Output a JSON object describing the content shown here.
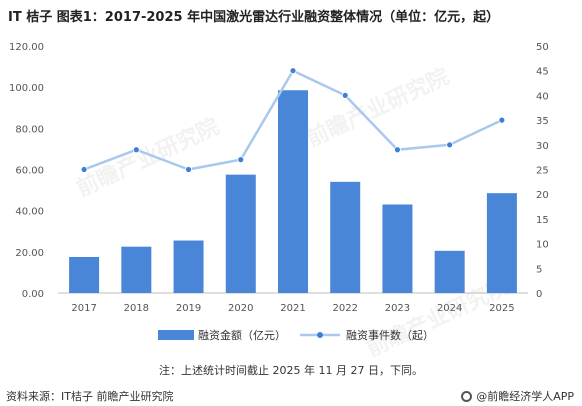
{
  "header": {
    "title": "IT 桔子  图表1：2017-2025 年中国激光雷达行业融资整体情况（单位：亿元，起）"
  },
  "chart_data": {
    "type": "bar",
    "categories": [
      "2017",
      "2018",
      "2019",
      "2020",
      "2021",
      "2022",
      "2023",
      "2024",
      "2025"
    ],
    "series": [
      {
        "name": "融资金额（亿元）",
        "type": "bar",
        "axis": "left",
        "values": [
          17.5,
          22.5,
          25.5,
          57.5,
          98.5,
          54,
          43,
          20.5,
          48.5
        ],
        "color": "#4a86d8"
      },
      {
        "name": "融资事件数（起）",
        "type": "line",
        "axis": "right",
        "values": [
          25,
          29,
          25,
          27,
          45,
          40,
          29,
          30,
          35
        ],
        "color": "#a9c8ee"
      }
    ],
    "y_left": {
      "range": [
        0,
        120
      ],
      "ticks": [
        "0.00",
        "20.00",
        "40.00",
        "60.00",
        "80.00",
        "100.00",
        "120.00"
      ]
    },
    "y_right": {
      "range": [
        0,
        50
      ],
      "ticks": [
        "0",
        "5",
        "10",
        "15",
        "20",
        "25",
        "30",
        "35",
        "40",
        "45",
        "50"
      ]
    },
    "grid": false,
    "legend": "bottom"
  },
  "note": "注：上述统计时间截止 2025 年 11 月 27 日，下同。",
  "footer": {
    "source": "资料来源：IT桔子 前瞻产业研究院",
    "brand": "@前瞻经济学人APP",
    "brand_icon": "qianzhan-logo-icon"
  },
  "watermark": "前瞻产业研究院"
}
